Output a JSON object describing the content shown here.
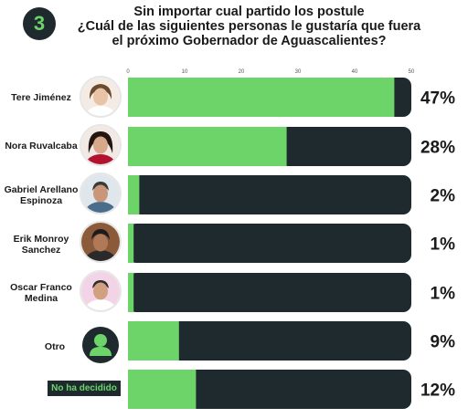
{
  "badge_number": "3",
  "title": {
    "line1": "Sin importar cual partido los postule",
    "line2": "¿Cuál de las siguientes personas le gustaría que fuera",
    "line3_a": "el próximo ",
    "line3_b": "Gobernador",
    "line3_c": " de ",
    "line3_d": "Aguascalientes",
    "line3_e": "?"
  },
  "colors": {
    "accent": "#6dd46a",
    "bar_track": "#1f2a2e",
    "text": "#1a1a1a"
  },
  "chart_data": {
    "type": "bar",
    "orientation": "horizontal",
    "title": "Sin importar cual partido los postule ¿Cuál de las siguientes personas le gustaría que fuera el próximo Gobernador de Aguascalientes?",
    "xlim": [
      0,
      50
    ],
    "x_ticks": [
      0,
      10,
      20,
      30,
      40,
      50
    ],
    "categories": [
      "Tere Jiménez",
      "Nora Ruvalcaba",
      "Gabriel Arellano Espinoza",
      "Erik Monroy Sanchez",
      "Oscar Franco Medina",
      "Otro",
      "No ha decidido"
    ],
    "values": [
      47,
      28,
      2,
      1,
      1,
      9,
      12
    ],
    "value_labels": [
      "47%",
      "28%",
      "2%",
      "1%",
      "1%",
      "9%",
      "12%"
    ],
    "bar_max": 50
  },
  "labels": {
    "tere": "Tere Jiménez",
    "nora": "Nora Ruvalcaba",
    "gabriel_1": "Gabriel Arellano",
    "gabriel_2": "Espinoza",
    "erik_1": "Erik Monroy",
    "erik_2": "Sanchez",
    "oscar_1": "Oscar Franco",
    "oscar_2": "Medina",
    "otro": "Otro",
    "no_decidido": "No ha decidido"
  },
  "icons": {
    "otro": "person-silhouette-icon"
  }
}
